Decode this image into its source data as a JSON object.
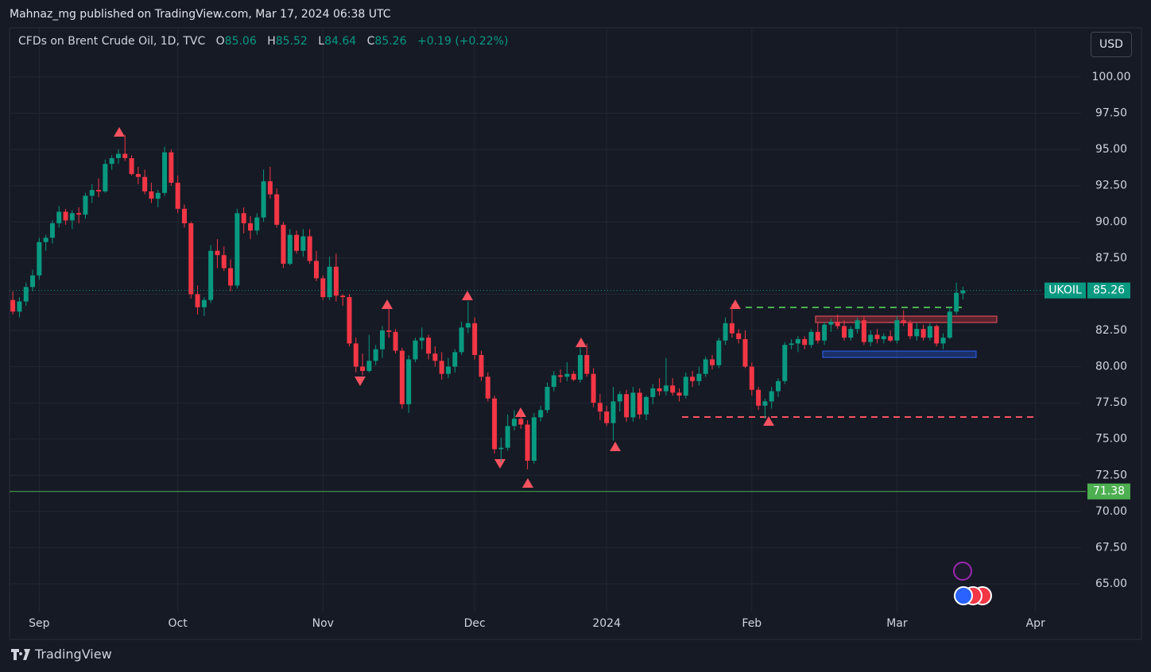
{
  "header": "Mahnaz_mg published on TradingView.com, Mar 17, 2024 06:38 UTC",
  "brand": "TradingView",
  "chart_data": {
    "type": "candlestick",
    "title": "CFDs on Brent Crude Oil, 1D, TVC",
    "ohlc_labels": [
      "O",
      "H",
      "L",
      "C"
    ],
    "change": "+0.19 (+0.22%)",
    "currency": "USD",
    "symbol": "UKOIL",
    "up_color": "#089981",
    "down_color": "#f23645",
    "grid": true,
    "xlim": [
      -0.5,
      161.9
    ],
    "xticks": [
      {
        "value": 4,
        "label": "Sep"
      },
      {
        "value": 25,
        "label": "Oct"
      },
      {
        "value": 47,
        "label": "Nov"
      },
      {
        "value": 70,
        "label": "Dec"
      },
      {
        "value": 90,
        "label": "2024"
      },
      {
        "value": 112,
        "label": "Feb"
      },
      {
        "value": 134,
        "label": "Mar"
      },
      {
        "value": 155,
        "label": "Apr"
      }
    ],
    "ylim": [
      63.08,
      103.4
    ],
    "yticks": [
      {
        "value": 65,
        "label": "65.00"
      },
      {
        "value": 67.5,
        "label": "67.50"
      },
      {
        "value": 70,
        "label": "70.00"
      },
      {
        "value": 72.5,
        "label": "72.50"
      },
      {
        "value": 75,
        "label": "75.00"
      },
      {
        "value": 77.5,
        "label": "77.50"
      },
      {
        "value": 80,
        "label": "80.00"
      },
      {
        "value": 82.5,
        "label": "82.50"
      },
      {
        "value": 85,
        "label": "85.00"
      },
      {
        "value": 87.5,
        "label": "87.50"
      },
      {
        "value": 90,
        "label": "90.00"
      },
      {
        "value": 92.5,
        "label": "92.50"
      },
      {
        "value": 95,
        "label": "95.00"
      },
      {
        "value": 97.5,
        "label": "97.50"
      },
      {
        "value": 100,
        "label": "100.00"
      }
    ],
    "hlines": [
      {
        "value": 71.38,
        "color": "#4caf50"
      }
    ],
    "candles": [
      [
        84.6,
        85.2,
        83.6,
        83.8
      ],
      [
        83.8,
        84.8,
        83.4,
        84.5
      ],
      [
        84.5,
        85.8,
        84.2,
        85.5
      ],
      [
        85.5,
        86.7,
        85.2,
        86.3
      ],
      [
        86.3,
        88.9,
        86.0,
        88.6
      ],
      [
        88.6,
        89.1,
        88.0,
        88.9
      ],
      [
        88.9,
        90.1,
        88.5,
        89.9
      ],
      [
        89.9,
        91.1,
        89.6,
        90.7
      ],
      [
        90.7,
        90.9,
        89.8,
        90.1
      ],
      [
        90.1,
        90.8,
        89.5,
        90.6
      ],
      [
        90.6,
        91.0,
        89.9,
        90.5
      ],
      [
        90.5,
        92.0,
        90.2,
        91.8
      ],
      [
        91.8,
        92.6,
        91.3,
        92.2
      ],
      [
        92.2,
        93.0,
        91.7,
        92.1
      ],
      [
        92.1,
        94.3,
        92.0,
        94.0
      ],
      [
        94.0,
        94.6,
        93.6,
        94.4
      ],
      [
        94.4,
        95.0,
        94.0,
        94.7
      ],
      [
        94.7,
        96.0,
        94.2,
        94.4
      ],
      [
        94.4,
        94.6,
        93.2,
        93.3
      ],
      [
        93.3,
        93.8,
        92.6,
        93.1
      ],
      [
        93.1,
        93.6,
        91.9,
        92.1
      ],
      [
        92.1,
        92.7,
        91.3,
        91.6
      ],
      [
        91.6,
        92.2,
        91.0,
        92.0
      ],
      [
        92.0,
        95.2,
        91.8,
        94.8
      ],
      [
        94.8,
        95.0,
        92.5,
        92.7
      ],
      [
        92.7,
        93.2,
        90.6,
        90.9
      ],
      [
        90.9,
        91.2,
        89.6,
        89.9
      ],
      [
        89.9,
        90.0,
        84.7,
        85.0
      ],
      [
        85.0,
        85.6,
        83.6,
        84.1
      ],
      [
        84.1,
        84.8,
        83.5,
        84.6
      ],
      [
        84.6,
        88.4,
        84.4,
        88.0
      ],
      [
        88.0,
        88.8,
        86.8,
        87.7
      ],
      [
        87.7,
        88.3,
        86.6,
        86.8
      ],
      [
        86.8,
        87.4,
        85.2,
        85.6
      ],
      [
        85.6,
        90.9,
        85.4,
        90.6
      ],
      [
        90.6,
        91.0,
        89.2,
        89.9
      ],
      [
        89.9,
        90.4,
        88.8,
        89.4
      ],
      [
        89.4,
        90.6,
        89.1,
        90.3
      ],
      [
        90.3,
        93.6,
        90.0,
        92.8
      ],
      [
        92.8,
        93.8,
        91.6,
        91.9
      ],
      [
        91.9,
        92.3,
        89.6,
        89.8
      ],
      [
        89.8,
        90.0,
        86.8,
        87.1
      ],
      [
        87.1,
        89.5,
        87.0,
        89.1
      ],
      [
        89.1,
        89.4,
        87.8,
        88.0
      ],
      [
        88.0,
        89.5,
        87.6,
        89.0
      ],
      [
        89.0,
        89.5,
        87.1,
        87.3
      ],
      [
        87.3,
        88.0,
        85.9,
        86.1
      ],
      [
        86.1,
        86.3,
        84.6,
        84.8
      ],
      [
        84.8,
        87.6,
        84.6,
        86.9
      ],
      [
        86.9,
        87.8,
        84.5,
        84.9
      ],
      [
        84.9,
        85.0,
        84.2,
        84.8
      ],
      [
        84.8,
        85.0,
        81.4,
        81.6
      ],
      [
        81.6,
        82.0,
        79.6,
        80.0
      ],
      [
        80.0,
        80.9,
        79.4,
        79.7
      ],
      [
        79.7,
        82.2,
        79.6,
        80.4
      ],
      [
        80.4,
        81.5,
        80.1,
        81.2
      ],
      [
        81.2,
        82.8,
        80.6,
        82.5
      ],
      [
        82.5,
        84.0,
        82.0,
        82.4
      ],
      [
        82.4,
        82.6,
        80.9,
        81.1
      ],
      [
        81.1,
        81.3,
        77.1,
        77.4
      ],
      [
        77.4,
        80.8,
        76.8,
        80.5
      ],
      [
        80.5,
        82.0,
        80.3,
        81.8
      ],
      [
        81.8,
        82.7,
        81.2,
        82.0
      ],
      [
        82.0,
        82.2,
        80.5,
        80.9
      ],
      [
        80.9,
        81.4,
        80.0,
        80.4
      ],
      [
        80.4,
        81.0,
        79.1,
        79.5
      ],
      [
        79.5,
        80.6,
        79.2,
        80.0
      ],
      [
        80.0,
        81.2,
        79.6,
        81.0
      ],
      [
        81.0,
        83.1,
        80.8,
        82.7
      ],
      [
        82.7,
        84.5,
        82.3,
        83.0
      ],
      [
        83.0,
        83.4,
        80.5,
        80.8
      ],
      [
        80.8,
        81.1,
        79.0,
        79.3
      ],
      [
        79.3,
        79.6,
        77.6,
        77.8
      ],
      [
        77.8,
        78.0,
        74.0,
        74.3
      ],
      [
        74.3,
        75.1,
        73.4,
        74.4
      ],
      [
        74.4,
        76.7,
        74.2,
        75.9
      ],
      [
        75.9,
        77.0,
        75.6,
        76.4
      ],
      [
        76.4,
        76.9,
        75.7,
        76.0
      ],
      [
        76.0,
        76.3,
        72.9,
        73.5
      ],
      [
        73.5,
        76.8,
        73.3,
        76.5
      ],
      [
        76.5,
        77.3,
        76.2,
        77.0
      ],
      [
        77.0,
        78.9,
        76.8,
        78.6
      ],
      [
        78.6,
        79.7,
        78.3,
        79.4
      ],
      [
        79.4,
        79.8,
        78.9,
        79.3
      ],
      [
        79.3,
        80.3,
        79.0,
        79.5
      ],
      [
        79.5,
        79.7,
        79.0,
        79.1
      ],
      [
        79.1,
        81.3,
        78.9,
        80.8
      ],
      [
        80.8,
        81.6,
        79.3,
        79.5
      ],
      [
        79.5,
        79.9,
        77.2,
        77.5
      ],
      [
        77.5,
        78.1,
        76.3,
        76.9
      ],
      [
        76.9,
        77.3,
        75.9,
        76.1
      ],
      [
        76.1,
        78.6,
        74.9,
        77.6
      ],
      [
        77.6,
        78.3,
        76.9,
        78.1
      ],
      [
        78.1,
        78.4,
        76.2,
        76.5
      ],
      [
        76.5,
        78.6,
        76.2,
        78.2
      ],
      [
        78.2,
        78.5,
        76.4,
        76.7
      ],
      [
        76.7,
        78.0,
        76.3,
        77.9
      ],
      [
        77.9,
        78.8,
        77.4,
        78.5
      ],
      [
        78.5,
        79.2,
        78.0,
        78.3
      ],
      [
        78.3,
        80.6,
        78.0,
        78.7
      ],
      [
        78.7,
        79.2,
        78.0,
        78.2
      ],
      [
        78.2,
        78.5,
        77.6,
        78.0
      ],
      [
        78.0,
        79.6,
        77.8,
        79.3
      ],
      [
        79.3,
        79.7,
        78.6,
        79.0
      ],
      [
        79.0,
        80.0,
        78.7,
        79.5
      ],
      [
        79.5,
        80.7,
        79.3,
        80.5
      ],
      [
        80.5,
        80.8,
        79.8,
        80.1
      ],
      [
        80.1,
        82.0,
        79.9,
        81.8
      ],
      [
        81.8,
        83.4,
        81.5,
        83.0
      ],
      [
        83.0,
        84.3,
        82.0,
        82.3
      ],
      [
        82.3,
        82.6,
        81.6,
        81.9
      ],
      [
        81.9,
        82.5,
        79.9,
        80.0
      ],
      [
        80.0,
        80.3,
        78.0,
        78.4
      ],
      [
        78.4,
        78.6,
        77.0,
        77.3
      ],
      [
        77.3,
        77.8,
        76.4,
        77.6
      ],
      [
        77.6,
        78.6,
        77.1,
        78.3
      ],
      [
        78.3,
        79.2,
        77.9,
        79.0
      ],
      [
        79.0,
        81.7,
        78.8,
        81.5
      ],
      [
        81.5,
        81.9,
        81.2,
        81.6
      ],
      [
        81.6,
        82.1,
        81.0,
        81.9
      ],
      [
        81.9,
        82.1,
        81.2,
        81.5
      ],
      [
        81.5,
        82.6,
        81.3,
        82.4
      ],
      [
        82.4,
        83.0,
        81.6,
        81.8
      ],
      [
        81.8,
        83.1,
        81.5,
        82.9
      ],
      [
        82.9,
        83.3,
        82.4,
        83.1
      ],
      [
        83.1,
        83.6,
        82.6,
        82.8
      ],
      [
        82.8,
        83.2,
        81.8,
        82.0
      ],
      [
        82.0,
        82.8,
        81.8,
        82.6
      ],
      [
        82.6,
        83.4,
        82.3,
        83.2
      ],
      [
        83.2,
        83.5,
        81.5,
        81.7
      ],
      [
        81.7,
        82.5,
        81.4,
        82.2
      ],
      [
        82.2,
        82.6,
        81.6,
        81.9
      ],
      [
        81.9,
        82.3,
        81.6,
        82.1
      ],
      [
        82.1,
        82.5,
        81.7,
        81.8
      ],
      [
        81.8,
        83.5,
        81.6,
        83.2
      ],
      [
        83.2,
        83.9,
        82.8,
        83.0
      ],
      [
        83.0,
        83.2,
        81.9,
        82.1
      ],
      [
        82.1,
        83.0,
        81.8,
        82.6
      ],
      [
        82.6,
        82.9,
        81.8,
        82.0
      ],
      [
        82.0,
        83.0,
        81.8,
        82.8
      ],
      [
        82.8,
        82.9,
        81.4,
        81.6
      ],
      [
        81.6,
        82.3,
        81.2,
        82.0
      ],
      [
        82.0,
        84.1,
        81.9,
        83.8
      ],
      [
        83.8,
        85.8,
        83.6,
        85.1
      ],
      [
        85.06,
        85.52,
        84.64,
        85.26
      ]
    ]
  }
}
